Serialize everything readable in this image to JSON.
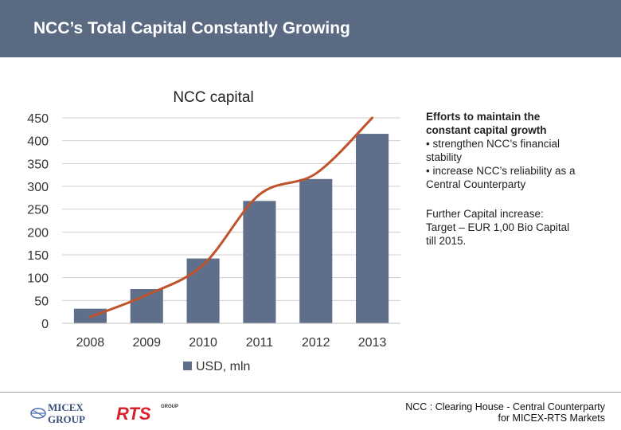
{
  "header": {
    "title": "NCC’s Total Capital Constantly Growing"
  },
  "side": {
    "heading_lines": [
      "Efforts to maintain the",
      "constant capital growth"
    ],
    "bullet1_lines": [
      "• strengthen NCC’s financial",
      "stability"
    ],
    "bullet2_lines": [
      "• increase NCC’s reliability as a",
      "Central Counterparty"
    ],
    "further_lines": [
      "Further Capital increase:",
      "Target – EUR 1,00 Bio Capital",
      "till 2015."
    ]
  },
  "footer": {
    "line1": "NCC : Clearing House - Central Counterparty",
    "line2": "for MICEX-RTS Markets",
    "micex_logo": {
      "line1": "MICEX",
      "line2": "GROUP"
    },
    "rts_logo": {
      "main": "RTS",
      "sub": "GROUP"
    }
  },
  "colors": {
    "header_bg": "#5a6a82",
    "bar": "#5f6f8b",
    "trend": "#c0532b"
  },
  "chart_data": {
    "type": "bar",
    "title": "NCC capital",
    "categories": [
      "2008",
      "2009",
      "2010",
      "2011",
      "2012",
      "2013"
    ],
    "series": [
      {
        "name": "USD, mln",
        "values": [
          32,
          75,
          142,
          268,
          316,
          415
        ]
      }
    ],
    "trend_line": {
      "type": "line",
      "x": [
        "2008",
        "2009",
        "2010",
        "2011",
        "2012",
        "2013"
      ],
      "values": [
        14,
        62,
        128,
        282,
        328,
        450
      ]
    },
    "ylim": [
      0,
      450
    ],
    "yticks": [
      0,
      50,
      100,
      150,
      200,
      250,
      300,
      350,
      400,
      450
    ],
    "grid": true,
    "legend": "bottom",
    "xlabel": "",
    "ylabel": ""
  }
}
